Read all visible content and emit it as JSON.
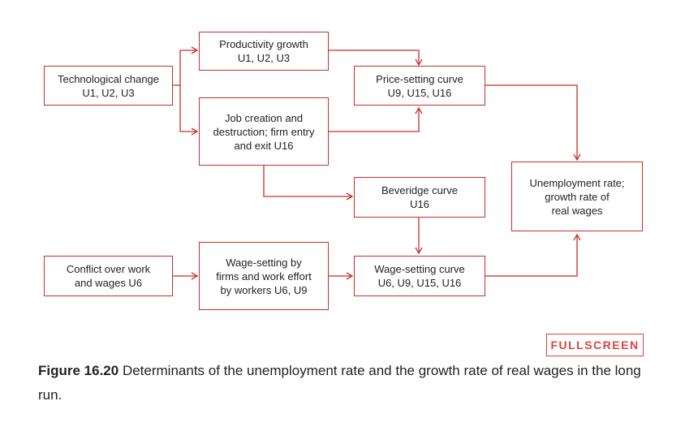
{
  "colors": {
    "accent": "#c8302a",
    "button": "#d9463e",
    "text": "#222222"
  },
  "nodes": {
    "technological_change": "Technological change\nU1, U2, U3",
    "productivity_growth": "Productivity growth\nU1, U2, U3",
    "job_creation": "Job creation and\ndestruction; firm entry\nand exit U16",
    "price_setting": "Price-setting curve\nU9, U15, U16",
    "beveridge": "Beveridge curve\nU16",
    "unemployment_rate": "Unemployment rate;\ngrowth rate of\nreal wages",
    "conflict": "Conflict over work\nand wages U6",
    "wage_setting_firms": "Wage-setting by\nfirms and work effort\nby workers U6, U9",
    "wage_setting_curve": "Wage-setting curve\nU6, U9, U15, U16"
  },
  "fullscreen_label": "FULLSCREEN",
  "caption": {
    "label": "Figure 16.20",
    "text": "Determinants of the unemployment rate and the growth rate of real wages in the long run."
  }
}
